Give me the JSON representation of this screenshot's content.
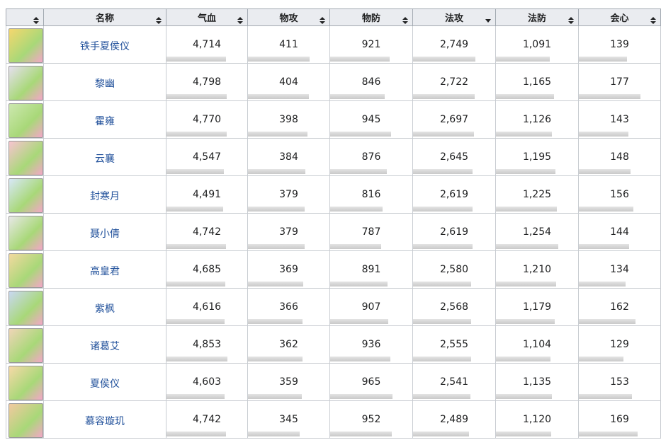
{
  "table": {
    "headers": [
      "名称",
      "气血",
      "物攻",
      "物防",
      "法攻",
      "法防",
      "会心"
    ],
    "rows": [
      [
        "铁手夏侯仪",
        "4,714",
        "411",
        "921",
        "2,749",
        "1,091",
        "139"
      ],
      [
        "黎幽",
        "4,798",
        "404",
        "846",
        "2,722",
        "1,165",
        "177"
      ],
      [
        "霍雍",
        "4,770",
        "398",
        "945",
        "2,697",
        "1,126",
        "143"
      ],
      [
        "云襄",
        "4,547",
        "384",
        "876",
        "2,645",
        "1,195",
        "148"
      ],
      [
        "封寒月",
        "4,491",
        "379",
        "816",
        "2,619",
        "1,225",
        "156"
      ],
      [
        "聂小倩",
        "4,742",
        "379",
        "787",
        "2,619",
        "1,254",
        "144"
      ],
      [
        "高皇君",
        "4,685",
        "369",
        "891",
        "2,580",
        "1,210",
        "134"
      ],
      [
        "紫枫",
        "4,616",
        "366",
        "907",
        "2,568",
        "1,179",
        "162"
      ],
      [
        "诸葛艾",
        "4,853",
        "362",
        "936",
        "2,555",
        "1,104",
        "129"
      ],
      [
        "夏侯仪",
        "4,603",
        "359",
        "965",
        "2,541",
        "1,135",
        "153"
      ],
      [
        "慕容璇玑",
        "4,742",
        "345",
        "952",
        "2,489",
        "1,120",
        "169"
      ]
    ]
  }
}
